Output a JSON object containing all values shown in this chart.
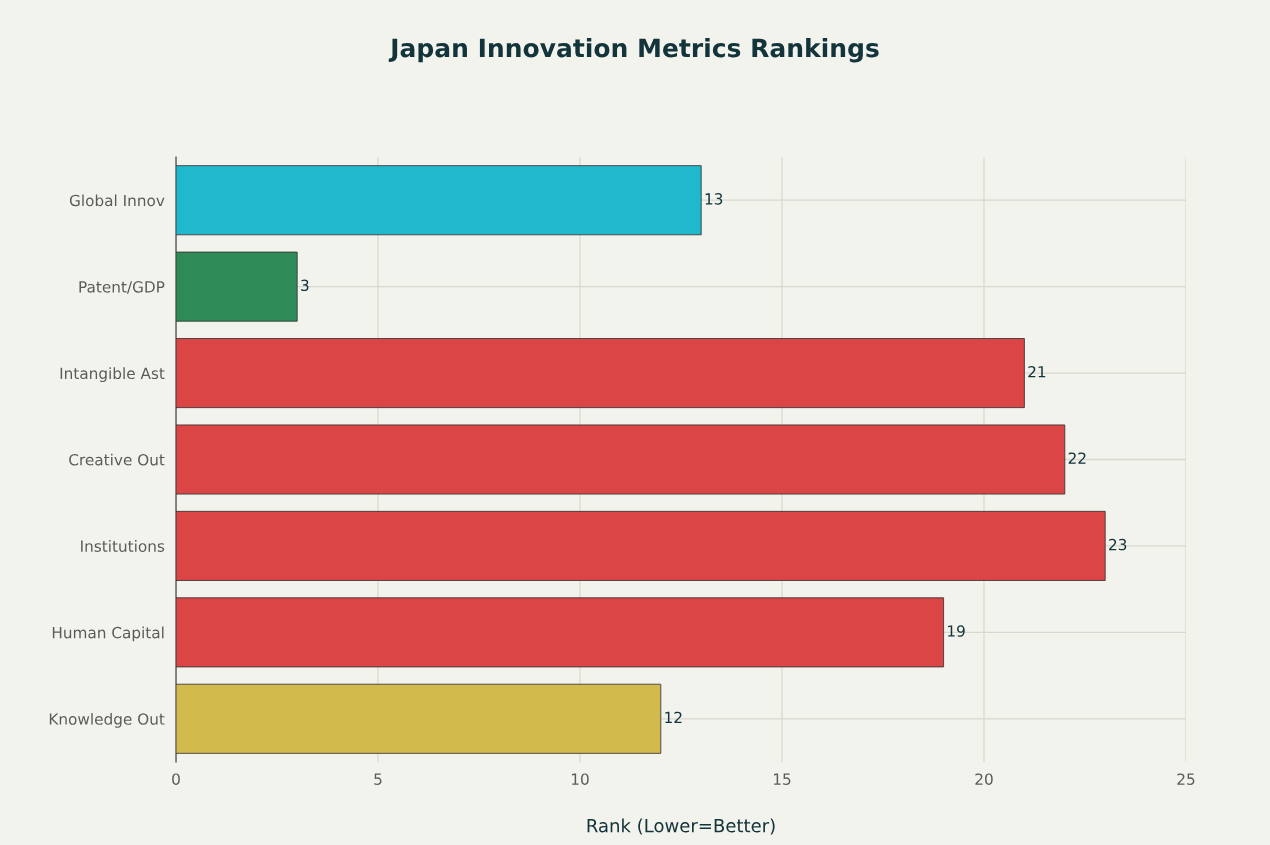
{
  "chart_data": {
    "type": "bar",
    "orientation": "horizontal",
    "title": "Japan Innovation Metrics Rankings",
    "xlabel": "Rank (Lower=Better)",
    "categories": [
      "Global Innov",
      "Patent/GDP",
      "Intangible Ast",
      "Creative Out",
      "Institutions",
      "Human Capital",
      "Knowledge Out"
    ],
    "values": [
      13,
      3,
      21,
      22,
      23,
      19,
      12
    ],
    "colors": [
      "#1fb8cd",
      "#2e8b57",
      "#db4545",
      "#db4545",
      "#db4545",
      "#db4545",
      "#d2ba4c"
    ],
    "xlim": [
      0,
      25
    ],
    "xticks": [
      0,
      5,
      10,
      15,
      20,
      25
    ],
    "grid": true,
    "data_labels": true
  }
}
